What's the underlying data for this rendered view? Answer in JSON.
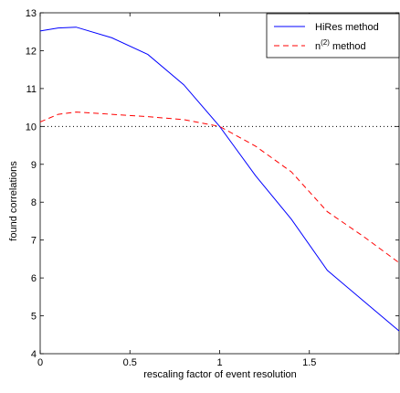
{
  "chart_data": {
    "type": "line",
    "xlabel": "rescaling factor of event resolution",
    "ylabel": "found correlations",
    "xlim": [
      0,
      2
    ],
    "ylim": [
      4,
      13
    ],
    "xticks": [
      0,
      0.5,
      1,
      1.5
    ],
    "xtick_labels": [
      "0",
      "0.5",
      "1",
      "1.5"
    ],
    "yticks": [
      4,
      5,
      6,
      7,
      8,
      9,
      10,
      11,
      12,
      13
    ],
    "ytick_labels": [
      "4",
      "5",
      "6",
      "7",
      "8",
      "9",
      "10",
      "11",
      "12",
      "13"
    ],
    "grid": false,
    "legend_position": "top-right",
    "reference_line": {
      "y": 10,
      "style": "dotted",
      "color": "#000000"
    },
    "series": [
      {
        "name": "HiRes method",
        "color": "#0000ff",
        "style": "solid",
        "x": [
          0,
          0.1,
          0.2,
          0.4,
          0.6,
          0.8,
          1.0,
          1.2,
          1.4,
          1.6,
          1.8,
          2.0
        ],
        "y": [
          12.52,
          12.6,
          12.62,
          12.34,
          11.9,
          11.1,
          10.0,
          8.7,
          7.55,
          6.2,
          5.4,
          4.6
        ]
      },
      {
        "name_base": "n",
        "name_sup": "(2)",
        "name_suffix": " method",
        "color": "#ff0000",
        "style": "dashed",
        "x": [
          0,
          0.1,
          0.2,
          0.4,
          0.6,
          0.8,
          1.0,
          1.2,
          1.4,
          1.6,
          1.8,
          2.0
        ],
        "y": [
          10.12,
          10.32,
          10.38,
          10.32,
          10.26,
          10.18,
          10.0,
          9.48,
          8.8,
          7.75,
          7.1,
          6.4
        ]
      }
    ]
  }
}
